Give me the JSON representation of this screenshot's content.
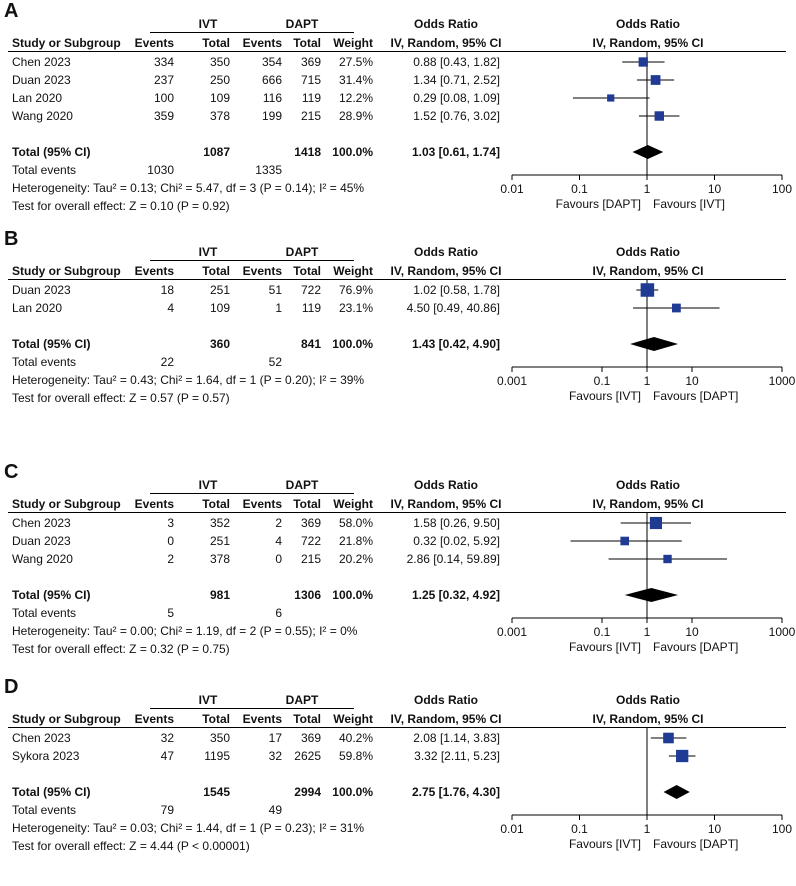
{
  "headers": {
    "group_ivt": "IVT",
    "group_dapt": "DAPT",
    "odds_ratio": "Odds Ratio",
    "study_or_subgroup": "Study or Subgroup",
    "events": "Events",
    "total": "Total",
    "weight": "Weight",
    "method": "IV, Random, 95% CI"
  },
  "colors": {
    "marker": "#1f3b94",
    "diamond": "#000000"
  },
  "chart_data": [
    {
      "type": "forest",
      "label": "A",
      "scale": "log",
      "axis_ticks": [
        "0.01",
        "0.1",
        "1",
        "10",
        "100"
      ],
      "favours_left": "Favours [DAPT]",
      "favours_right": "Favours [IVT]",
      "studies": [
        {
          "name": "Chen 2023",
          "ivt_events": "334",
          "ivt_total": "350",
          "dapt_events": "354",
          "dapt_total": "369",
          "weight": "27.5%",
          "ci_text": "0.88 [0.43, 1.82]",
          "or": 0.88,
          "lo": 0.43,
          "hi": 1.82,
          "w": 27.5
        },
        {
          "name": "Duan 2023",
          "ivt_events": "237",
          "ivt_total": "250",
          "dapt_events": "666",
          "dapt_total": "715",
          "weight": "31.4%",
          "ci_text": "1.34 [0.71, 2.52]",
          "or": 1.34,
          "lo": 0.71,
          "hi": 2.52,
          "w": 31.4
        },
        {
          "name": "Lan 2020",
          "ivt_events": "100",
          "ivt_total": "109",
          "dapt_events": "116",
          "dapt_total": "119",
          "weight": "12.2%",
          "ci_text": "0.29 [0.08, 1.09]",
          "or": 0.29,
          "lo": 0.08,
          "hi": 1.09,
          "w": 12.2
        },
        {
          "name": "Wang 2020",
          "ivt_events": "359",
          "ivt_total": "378",
          "dapt_events": "199",
          "dapt_total": "215",
          "weight": "28.9%",
          "ci_text": "1.52 [0.76, 3.02]",
          "or": 1.52,
          "lo": 0.76,
          "hi": 3.02,
          "w": 28.9
        }
      ],
      "total": {
        "label": "Total (95% CI)",
        "ivt_total": "1087",
        "dapt_total": "1418",
        "weight": "100.0%",
        "ci_text": "1.03 [0.61, 1.74]",
        "or": 1.03,
        "lo": 0.61,
        "hi": 1.74
      },
      "total_events": {
        "label": "Total events",
        "ivt": "1030",
        "dapt": "1335"
      },
      "heterogeneity": "Heterogeneity: Tau² = 0.13; Chi² = 5.47, df = 3 (P = 0.14); I² = 45%",
      "overall_effect": "Test for overall effect: Z = 0.10 (P = 0.92)"
    },
    {
      "type": "forest",
      "label": "B",
      "scale": "log",
      "axis_ticks": [
        "0.001",
        "0.1",
        "1",
        "10",
        "1000"
      ],
      "favours_left": "Favours [IVT]",
      "favours_right": "Favours [DAPT]",
      "studies": [
        {
          "name": "Duan 2023",
          "ivt_events": "18",
          "ivt_total": "251",
          "dapt_events": "51",
          "dapt_total": "722",
          "weight": "76.9%",
          "ci_text": "1.02 [0.58, 1.78]",
          "or": 1.02,
          "lo": 0.58,
          "hi": 1.78,
          "w": 76.9
        },
        {
          "name": "Lan 2020",
          "ivt_events": "4",
          "ivt_total": "109",
          "dapt_events": "1",
          "dapt_total": "119",
          "weight": "23.1%",
          "ci_text": "4.50 [0.49, 40.86]",
          "or": 4.5,
          "lo": 0.49,
          "hi": 40.86,
          "w": 23.1
        }
      ],
      "total": {
        "label": "Total (95% CI)",
        "ivt_total": "360",
        "dapt_total": "841",
        "weight": "100.0%",
        "ci_text": "1.43 [0.42, 4.90]",
        "or": 1.43,
        "lo": 0.42,
        "hi": 4.9
      },
      "total_events": {
        "label": "Total events",
        "ivt": "22",
        "dapt": "52"
      },
      "heterogeneity": "Heterogeneity: Tau² = 0.43; Chi² = 1.64, df = 1 (P = 0.20); I² = 39%",
      "overall_effect": "Test for overall effect: Z = 0.57 (P = 0.57)"
    },
    {
      "type": "forest",
      "label": "C",
      "scale": "log",
      "axis_ticks": [
        "0.001",
        "0.1",
        "1",
        "10",
        "1000"
      ],
      "favours_left": "Favours [IVT]",
      "favours_right": "Favours [DAPT]",
      "studies": [
        {
          "name": "Chen 2023",
          "ivt_events": "3",
          "ivt_total": "352",
          "dapt_events": "2",
          "dapt_total": "369",
          "weight": "58.0%",
          "ci_text": "1.58 [0.26, 9.50]",
          "or": 1.58,
          "lo": 0.26,
          "hi": 9.5,
          "w": 58.0
        },
        {
          "name": "Duan 2023",
          "ivt_events": "0",
          "ivt_total": "251",
          "dapt_events": "4",
          "dapt_total": "722",
          "weight": "21.8%",
          "ci_text": "0.32 [0.02, 5.92]",
          "or": 0.32,
          "lo": 0.02,
          "hi": 5.92,
          "w": 21.8
        },
        {
          "name": "Wang 2020",
          "ivt_events": "2",
          "ivt_total": "378",
          "dapt_events": "0",
          "dapt_total": "215",
          "weight": "20.2%",
          "ci_text": "2.86 [0.14, 59.89]",
          "or": 2.86,
          "lo": 0.14,
          "hi": 59.89,
          "w": 20.2
        }
      ],
      "total": {
        "label": "Total (95% CI)",
        "ivt_total": "981",
        "dapt_total": "1306",
        "weight": "100.0%",
        "ci_text": "1.25 [0.32, 4.92]",
        "or": 1.25,
        "lo": 0.32,
        "hi": 4.92
      },
      "total_events": {
        "label": "Total events",
        "ivt": "5",
        "dapt": "6"
      },
      "heterogeneity": "Heterogeneity: Tau² = 0.00; Chi² = 1.19, df = 2 (P = 0.55); I² = 0%",
      "overall_effect": "Test for overall effect: Z = 0.32 (P = 0.75)"
    },
    {
      "type": "forest",
      "label": "D",
      "scale": "log",
      "axis_ticks": [
        "0.01",
        "0.1",
        "1",
        "10",
        "100"
      ],
      "favours_left": "Favours [IVT]",
      "favours_right": "Favours [DAPT]",
      "studies": [
        {
          "name": "Chen 2023",
          "ivt_events": "32",
          "ivt_total": "350",
          "dapt_events": "17",
          "dapt_total": "369",
          "weight": "40.2%",
          "ci_text": "2.08 [1.14, 3.83]",
          "or": 2.08,
          "lo": 1.14,
          "hi": 3.83,
          "w": 40.2
        },
        {
          "name": "Sykora 2023",
          "ivt_events": "47",
          "ivt_total": "1195",
          "dapt_events": "32",
          "dapt_total": "2625",
          "weight": "59.8%",
          "ci_text": "3.32 [2.11, 5.23]",
          "or": 3.32,
          "lo": 2.11,
          "hi": 5.23,
          "w": 59.8
        }
      ],
      "total": {
        "label": "Total (95% CI)",
        "ivt_total": "1545",
        "dapt_total": "2994",
        "weight": "100.0%",
        "ci_text": "2.75 [1.76, 4.30]",
        "or": 2.75,
        "lo": 1.76,
        "hi": 4.3
      },
      "total_events": {
        "label": "Total events",
        "ivt": "79",
        "dapt": "49"
      },
      "heterogeneity": "Heterogeneity: Tau² = 0.03; Chi² = 1.44, df = 1 (P = 0.23); I² = 31%",
      "overall_effect": "Test for overall effect: Z = 4.44 (P < 0.00001)"
    }
  ]
}
